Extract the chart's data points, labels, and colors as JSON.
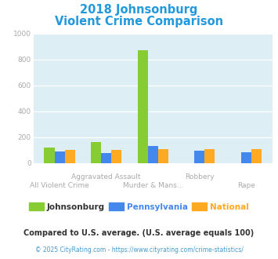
{
  "title_line1": "2018 Johnsonburg",
  "title_line2": "Violent Crime Comparison",
  "title_color": "#2299dd",
  "categories": [
    "All Violent Crime",
    "Aggravated Assault",
    "Murder & Mans...",
    "Robbery",
    "Rape"
  ],
  "johnsonburg": [
    120,
    163,
    875,
    0,
    0
  ],
  "pennsylvania": [
    88,
    78,
    130,
    95,
    87
  ],
  "national": [
    105,
    103,
    107,
    107,
    106
  ],
  "bar_colors": {
    "johnsonburg": "#88cc33",
    "pennsylvania": "#4488ee",
    "national": "#ffaa22"
  },
  "plot_bg": "#ddeef4",
  "ylim": [
    0,
    1000
  ],
  "yticks": [
    0,
    200,
    400,
    600,
    800,
    1000
  ],
  "legend_labels": [
    "Johnsonburg",
    "Pennsylvania",
    "National"
  ],
  "legend_text_colors": [
    "#333333",
    "#4488ee",
    "#ffaa22"
  ],
  "footnote1": "Compared to U.S. average. (U.S. average equals 100)",
  "footnote2": "© 2025 CityRating.com - https://www.cityrating.com/crime-statistics/",
  "footnote1_color": "#333333",
  "footnote2_color": "#4499cc"
}
